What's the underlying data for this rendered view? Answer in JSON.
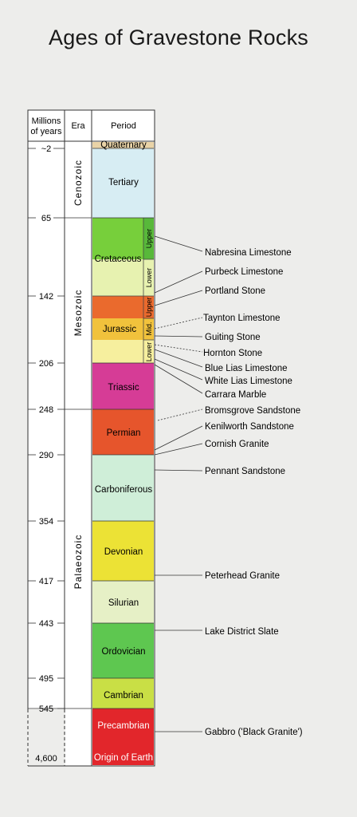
{
  "title": "Ages of Gravestone Rocks",
  "headers": {
    "millions_of_years_line1": "Millions",
    "millions_of_years_line2": "of years",
    "era": "Era",
    "period": "Period"
  },
  "ages": [
    "~2",
    "65",
    "142",
    "206",
    "248",
    "290",
    "354",
    "417",
    "443",
    "495",
    "545",
    "4,600"
  ],
  "eras": [
    "Cenozoic",
    "Mesozoic",
    "Palaeozoic"
  ],
  "periods": [
    {
      "name": "Quaternary",
      "color": "#e9d3a7"
    },
    {
      "name": "Tertiary",
      "color": "#d7edf3"
    },
    {
      "name": "Cretaceous",
      "color": "#e7f2b0"
    },
    {
      "name": "Jurassic",
      "color": "#f6ef9e"
    },
    {
      "name": "Triassic",
      "color": "#d63c96"
    },
    {
      "name": "Permian",
      "color": "#e6552c"
    },
    {
      "name": "Carboniferous",
      "color": "#cfeed8"
    },
    {
      "name": "Devonian",
      "color": "#ece235"
    },
    {
      "name": "Silurian",
      "color": "#e6f0c6"
    },
    {
      "name": "Ordovician",
      "color": "#5ec750"
    },
    {
      "name": "Cambrian",
      "color": "#c9df45"
    },
    {
      "name": "Precambrian",
      "color": "#e2262b"
    },
    {
      "name": "Origin of Earth",
      "color": "#e2262b"
    }
  ],
  "subdivisions": [
    "Upper",
    "Lower",
    "Upper",
    "Mid.",
    "Lower"
  ],
  "rocks": [
    "Nabresina Limestone",
    "Purbeck Limestone",
    "Portland Stone",
    "Taynton Limestone",
    "Guiting Stone",
    "Hornton Stone",
    "Blue Lias Limestone",
    "White Lias Limestone",
    "Carrara Marble",
    "Bromsgrove Sandstone",
    "Kenilworth Sandstone",
    "Cornish Granite",
    "Pennant Sandstone",
    "Peterhead Granite",
    "Lake District Slate",
    "Gabbro ('Black Granite')"
  ]
}
